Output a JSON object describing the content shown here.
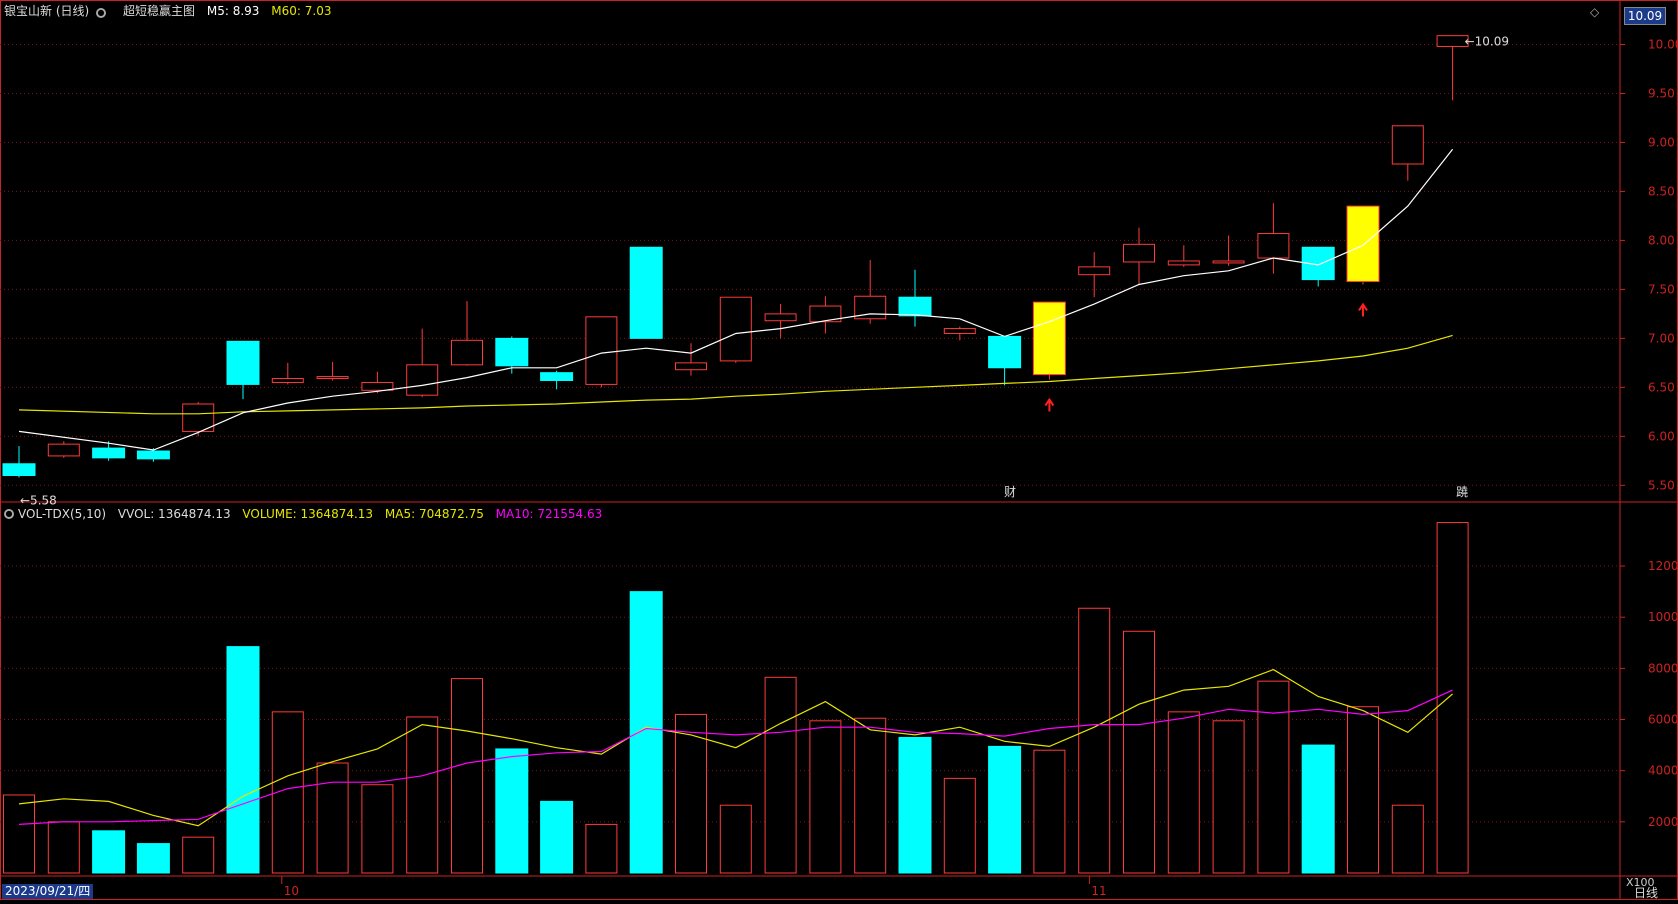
{
  "header": {
    "stock_name": "银宝山新 (日线)",
    "indicator_name": "超短稳赢主图",
    "m5": "M5: 8.93",
    "m60": "M60: 7.03",
    "colors": {
      "m5": "#ffffff",
      "m60": "#e6e600"
    }
  },
  "vol_header": {
    "name": "VOL-TDX(5,10)",
    "vvol": "VVOL: 1364874.13",
    "volume": "VOLUME: 1364874.13",
    "ma5": "MA5: 704872.75",
    "ma10": "MA10: 721554.63"
  },
  "price_tag": "10.09",
  "footer": {
    "date": "2023/09/21/四",
    "period": "日线",
    "unit": "X100",
    "month_10": "10",
    "month_11": "11"
  },
  "colors": {
    "up": "#ff3a3a",
    "down": "#00ffff",
    "signal": "#ffff00",
    "m5": "#ffffff",
    "m60": "#e6e600",
    "ma10": "#ff00ff",
    "grid": "#7a1414",
    "axis": "#cc2222"
  },
  "chart_data": [
    {
      "type": "candlestick",
      "yticks": [
        "10.00",
        "9.50",
        "9.00",
        "8.50",
        "8.00",
        "7.50",
        "7.00",
        "6.50",
        "6.00",
        "5.50"
      ],
      "ylim": [
        5.35,
        10.25
      ],
      "annotations": {
        "low_label": "5.58",
        "high_label": "10.09",
        "cai_marker": "财",
        "jiao_marker": "蹺"
      },
      "candles": [
        {
          "o": 5.72,
          "c": 5.6,
          "h": 5.9,
          "l": 5.58
        },
        {
          "o": 5.8,
          "c": 5.92,
          "h": 5.95,
          "l": 5.78
        },
        {
          "o": 5.88,
          "c": 5.78,
          "h": 5.95,
          "l": 5.75
        },
        {
          "o": 5.85,
          "c": 5.77,
          "h": 5.88,
          "l": 5.74
        },
        {
          "o": 6.05,
          "c": 6.33,
          "h": 6.35,
          "l": 6.0
        },
        {
          "o": 6.97,
          "c": 6.53,
          "h": 6.97,
          "l": 6.38
        },
        {
          "o": 6.55,
          "c": 6.59,
          "h": 6.75,
          "l": 6.53
        },
        {
          "o": 6.59,
          "c": 6.61,
          "h": 6.76,
          "l": 6.57
        },
        {
          "o": 6.47,
          "c": 6.55,
          "h": 6.66,
          "l": 6.44
        },
        {
          "o": 6.42,
          "c": 6.73,
          "h": 7.1,
          "l": 6.4
        },
        {
          "o": 6.73,
          "c": 6.98,
          "h": 7.38,
          "l": 6.72
        },
        {
          "o": 7.0,
          "c": 6.72,
          "h": 7.02,
          "l": 6.64
        },
        {
          "o": 6.65,
          "c": 6.57,
          "h": 6.67,
          "l": 6.48
        },
        {
          "o": 6.53,
          "c": 7.22,
          "h": 7.22,
          "l": 6.5
        },
        {
          "o": 7.93,
          "c": 7.0,
          "h": 7.93,
          "l": 7.0
        },
        {
          "o": 6.68,
          "c": 6.75,
          "h": 6.95,
          "l": 6.62
        },
        {
          "o": 6.77,
          "c": 7.42,
          "h": 7.42,
          "l": 6.75
        },
        {
          "o": 7.18,
          "c": 7.25,
          "h": 7.35,
          "l": 7.0
        },
        {
          "o": 7.17,
          "c": 7.33,
          "h": 7.43,
          "l": 7.05
        },
        {
          "o": 7.2,
          "c": 7.43,
          "h": 7.8,
          "l": 7.15
        },
        {
          "o": 7.42,
          "c": 7.23,
          "h": 7.7,
          "l": 7.12
        },
        {
          "o": 7.05,
          "c": 7.1,
          "h": 7.12,
          "l": 6.98
        },
        {
          "o": 7.02,
          "c": 6.7,
          "h": 7.02,
          "l": 6.52
        },
        {
          "o": 6.63,
          "c": 7.37,
          "h": 7.37,
          "l": 6.58,
          "signal": true
        },
        {
          "o": 7.65,
          "c": 7.73,
          "h": 7.88,
          "l": 7.42
        },
        {
          "o": 7.78,
          "c": 7.96,
          "h": 8.13,
          "l": 7.55
        },
        {
          "o": 7.75,
          "c": 7.79,
          "h": 7.95,
          "l": 7.73
        },
        {
          "o": 7.77,
          "c": 7.79,
          "h": 8.05,
          "l": 7.74
        },
        {
          "o": 7.82,
          "c": 8.07,
          "h": 8.38,
          "l": 7.66
        },
        {
          "o": 7.93,
          "c": 7.6,
          "h": 7.93,
          "l": 7.53
        },
        {
          "o": 7.58,
          "c": 8.35,
          "h": 8.35,
          "l": 7.55,
          "signal": true
        },
        {
          "o": 8.78,
          "c": 9.17,
          "h": 9.17,
          "l": 8.61
        },
        {
          "o": 9.98,
          "c": 10.09,
          "h": 10.09,
          "l": 9.43
        }
      ],
      "m5": [
        6.05,
        null,
        5.93,
        5.86,
        6.04,
        6.24,
        6.34,
        6.41,
        6.46,
        6.52,
        6.6,
        6.7,
        6.7,
        6.85,
        6.9,
        6.85,
        7.05,
        7.1,
        7.18,
        7.25,
        7.24,
        7.2,
        7.02,
        7.17,
        7.35,
        7.55,
        7.64,
        7.69,
        7.82,
        7.75,
        7.95,
        8.35,
        8.93
      ],
      "m60": [
        6.27,
        null,
        null,
        6.23,
        6.23,
        6.25,
        6.26,
        6.27,
        6.28,
        6.29,
        6.31,
        6.32,
        6.33,
        6.35,
        6.37,
        6.38,
        6.41,
        6.43,
        6.46,
        6.48,
        6.5,
        6.52,
        6.54,
        6.56,
        6.59,
        6.62,
        6.65,
        6.69,
        6.73,
        6.77,
        6.82,
        6.9,
        7.03
      ],
      "signals": [
        23,
        30
      ]
    },
    {
      "type": "bar",
      "title": "VOL-TDX(5,10)",
      "yticks": [
        "12000",
        "10000",
        "8000",
        "6000",
        "4000",
        "2000"
      ],
      "ylim": [
        0,
        13800
      ],
      "volumes": [
        3050,
        2000,
        1650,
        1150,
        1400,
        8850,
        6300,
        4300,
        3450,
        6100,
        7600,
        4850,
        2800,
        1900,
        11000,
        6200,
        2650,
        7650,
        5950,
        6050,
        5300,
        3700,
        4950,
        4800,
        10350,
        9450,
        6300,
        5950,
        7500,
        5000,
        6500,
        2650,
        13700
      ],
      "down": [
        false,
        false,
        true,
        true,
        false,
        true,
        false,
        false,
        false,
        false,
        false,
        true,
        true,
        false,
        true,
        false,
        false,
        false,
        false,
        false,
        true,
        false,
        true,
        false,
        false,
        false,
        false,
        false,
        false,
        true,
        false,
        false,
        false
      ],
      "ma5": [
        2700,
        2900,
        2800,
        2250,
        1850,
        3000,
        3800,
        4350,
        4850,
        5800,
        5550,
        5250,
        4900,
        4650,
        5700,
        5400,
        4900,
        5850,
        6700,
        5600,
        5400,
        5700,
        5150,
        4950,
        5700,
        6600,
        7150,
        7300,
        7950,
        6900,
        6350,
        5500,
        7000
      ],
      "ma10": [
        1900,
        2000,
        2000,
        2050,
        2100,
        2700,
        3300,
        3550,
        3550,
        3800,
        4300,
        4550,
        4700,
        4750,
        5650,
        5500,
        5400,
        5500,
        5700,
        5700,
        5500,
        5450,
        5350,
        5650,
        5800,
        5800,
        6050,
        6400,
        6250,
        6400,
        6200,
        6350,
        7150
      ]
    }
  ]
}
